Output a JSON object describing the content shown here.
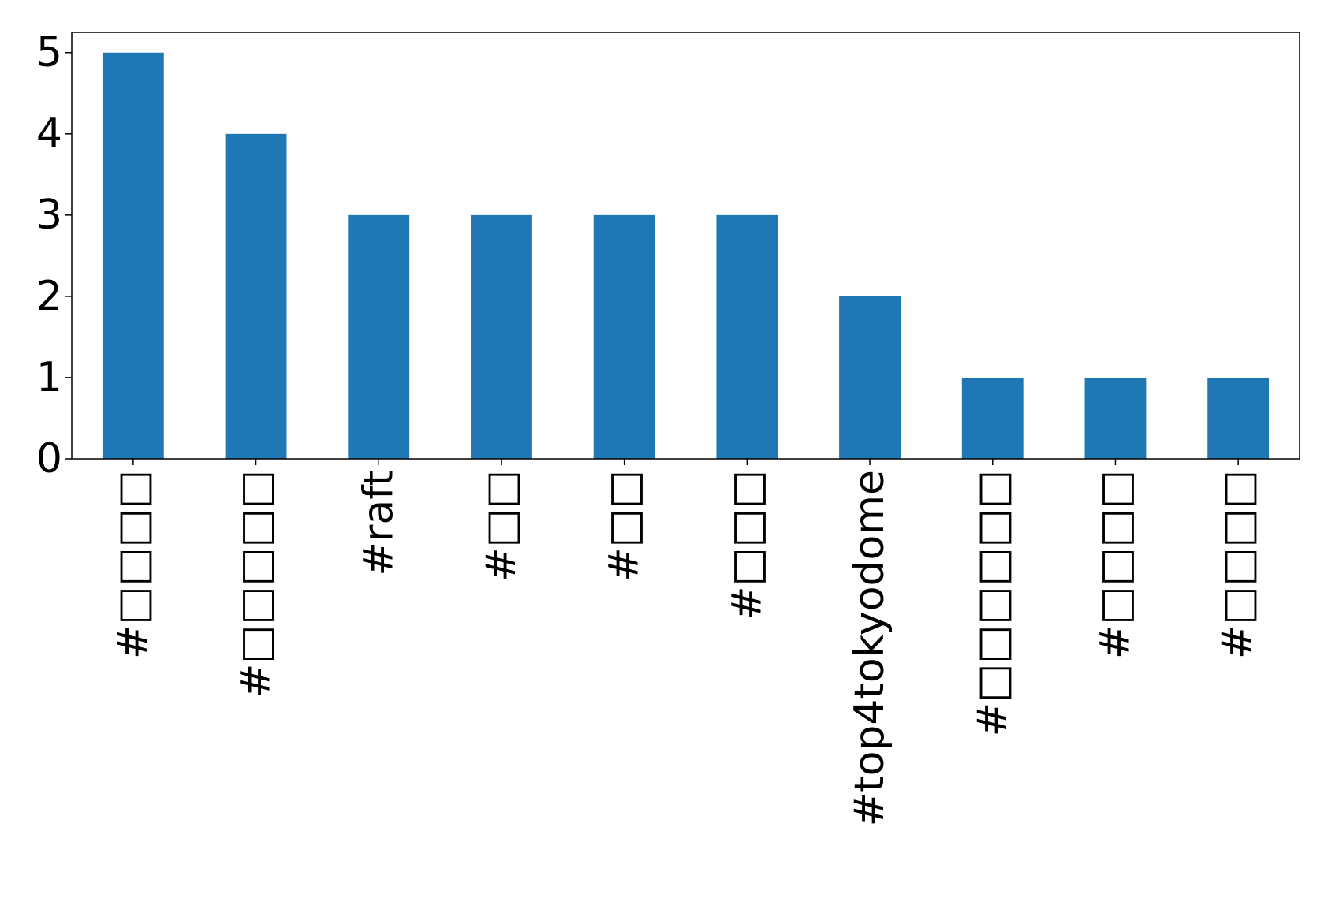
{
  "chart_data": {
    "type": "bar",
    "categories": [
      "#□□□□",
      "#□□□□□",
      "#raft",
      "#□□",
      "#□□",
      "#□□□",
      "#top4tokyodome",
      "#□□□□□□",
      "#□□□□",
      "#□□□□"
    ],
    "values": [
      5,
      4,
      3,
      3,
      3,
      3,
      2,
      1,
      1,
      1
    ],
    "color": "#1f77b4",
    "ylim": [
      0,
      5.25
    ],
    "yticks": [
      0,
      1,
      2,
      3,
      4,
      5
    ],
    "grid": false
  }
}
